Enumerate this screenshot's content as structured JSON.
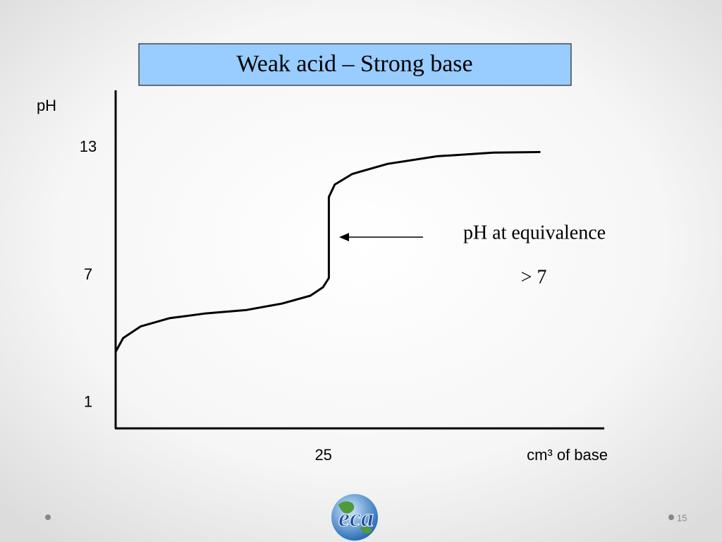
{
  "chart_data": {
    "type": "line",
    "title": "Weak acid – Strong base",
    "y_label": "pH",
    "x_label": "cm³ of base",
    "x": [
      0,
      0.9,
      3.0,
      6.4,
      10.6,
      15.6,
      19.8,
      23.2,
      24.7,
      25.4,
      25.4,
      26.1,
      28.2,
      32.4,
      38.3,
      45.0,
      50.6
    ],
    "values": [
      3.4,
      4.05,
      4.6,
      4.98,
      5.2,
      5.37,
      5.67,
      6.04,
      6.44,
      6.87,
      10.68,
      11.27,
      11.77,
      12.24,
      12.6,
      12.77,
      12.8
    ],
    "color": "#000000",
    "xlim": [
      0,
      58.2
    ],
    "xticks": [
      25
    ],
    "ylim": [
      -0.2,
      15.7
    ],
    "yticks": [
      1,
      7,
      13
    ],
    "grid": false,
    "annotations": [
      "pH at equivalence",
      "> 7"
    ]
  },
  "footer": {
    "page_number": "15",
    "logo_text": "eca"
  }
}
